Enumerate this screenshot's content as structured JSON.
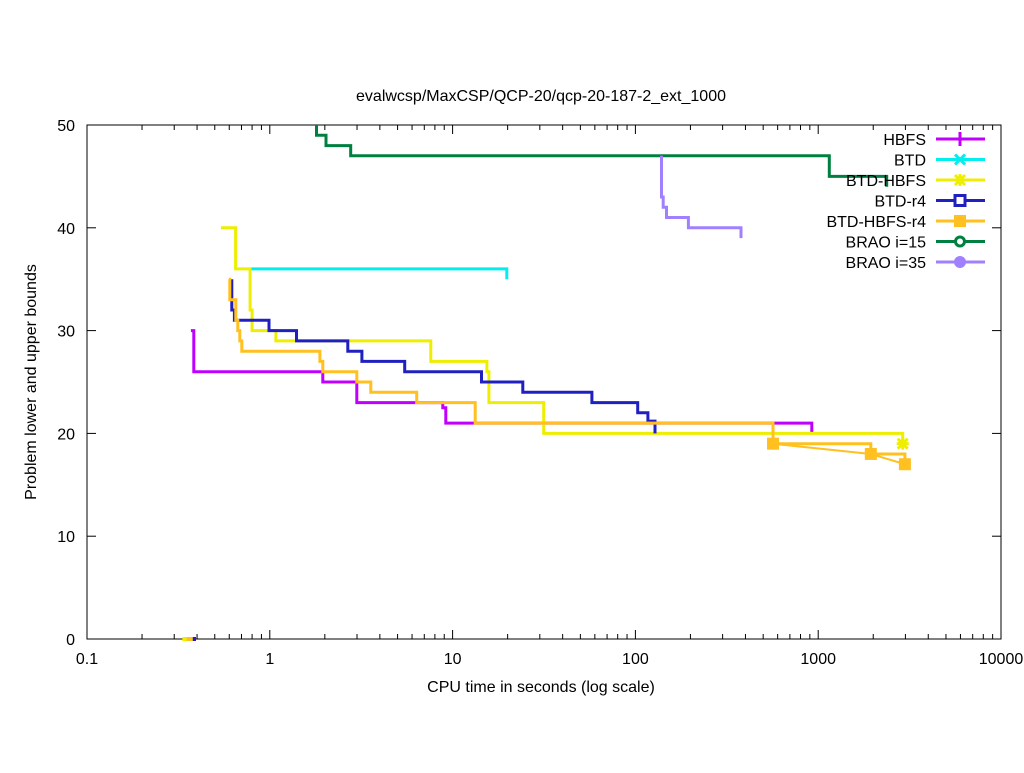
{
  "chart_data": {
    "type": "line",
    "title": "evalwcsp/MaxCSP/QCP-20/qcp-20-187-2_ext_1000",
    "xlabel": "CPU time in seconds (log scale)",
    "ylabel": "Problem lower and upper bounds",
    "xscale": "log",
    "xlim": [
      0.1,
      10000
    ],
    "ylim": [
      0,
      50
    ],
    "xticks": [
      0.1,
      1,
      10,
      100,
      1000,
      10000
    ],
    "xtick_labels": [
      "0.1",
      "1",
      "10",
      "100",
      "1000",
      "10000"
    ],
    "yticks": [
      0,
      10,
      20,
      30,
      40,
      50
    ],
    "ytick_labels": [
      "0",
      "10",
      "20",
      "30",
      "40",
      "50"
    ],
    "grid": false,
    "legend_position": "top-right",
    "series": [
      {
        "name": "HBFS",
        "color": "#c000ff",
        "marker": "plus",
        "points": [
          [
            0.37,
            30
          ],
          [
            0.384,
            30
          ],
          [
            0.384,
            26
          ],
          [
            1.95,
            26
          ],
          [
            1.95,
            25
          ],
          [
            2.99,
            25
          ],
          [
            2.99,
            23
          ],
          [
            8.84,
            23
          ],
          [
            8.84,
            22.5
          ],
          [
            9.18,
            22.5
          ],
          [
            9.18,
            21
          ],
          [
            571,
            21
          ],
          [
            922,
            21
          ],
          [
            922,
            20
          ]
        ],
        "zero_marks": []
      },
      {
        "name": "BTD",
        "color": "#00eeee",
        "marker": "cross",
        "points": [
          [
            0.78,
            36
          ],
          [
            19.8,
            36
          ],
          [
            19.8,
            35
          ]
        ],
        "zero_marks": [
          0.355
        ]
      },
      {
        "name": "BTD-HBFS",
        "color": "#eeee00",
        "marker": "star",
        "points": [
          [
            0.54,
            40
          ],
          [
            0.65,
            40
          ],
          [
            0.65,
            36
          ],
          [
            0.78,
            36
          ],
          [
            0.78,
            32
          ],
          [
            0.8,
            32
          ],
          [
            0.8,
            30
          ],
          [
            1.08,
            30
          ],
          [
            1.08,
            29
          ],
          [
            7.6,
            29
          ],
          [
            7.6,
            27
          ],
          [
            15.4,
            27
          ],
          [
            15.4,
            26
          ],
          [
            15.8,
            26
          ],
          [
            15.8,
            23
          ],
          [
            31.5,
            23
          ],
          [
            31.5,
            20
          ],
          [
            2900,
            20
          ],
          [
            2900,
            19
          ]
        ],
        "end_marker": [
          2900,
          19
        ],
        "zero_marks": [
          0.345
        ]
      },
      {
        "name": "BTD-r4",
        "color": "#2020c0",
        "marker": "box",
        "points": [
          [
            0.62,
            35
          ],
          [
            0.62,
            32
          ],
          [
            0.64,
            32
          ],
          [
            0.64,
            31
          ],
          [
            0.99,
            31
          ],
          [
            0.99,
            30
          ],
          [
            1.4,
            30
          ],
          [
            1.4,
            29
          ],
          [
            2.67,
            29
          ],
          [
            2.67,
            28
          ],
          [
            3.19,
            28
          ],
          [
            3.19,
            27
          ],
          [
            5.47,
            27
          ],
          [
            5.47,
            26
          ],
          [
            14.4,
            26
          ],
          [
            14.4,
            25
          ],
          [
            24.2,
            25
          ],
          [
            24.2,
            24
          ],
          [
            57.8,
            24
          ],
          [
            57.8,
            23
          ],
          [
            103,
            23
          ],
          [
            103,
            22
          ],
          [
            117,
            22
          ],
          [
            117,
            21.2
          ],
          [
            128,
            21.2
          ],
          [
            128,
            20
          ]
        ],
        "zero_marks": [
          0.38
        ]
      },
      {
        "name": "BTD-HBFS-r4",
        "color": "#ffc020",
        "marker": "filled-box",
        "points": [
          [
            0.597,
            35
          ],
          [
            0.604,
            35
          ],
          [
            0.604,
            33
          ],
          [
            0.652,
            33
          ],
          [
            0.652,
            31
          ],
          [
            0.668,
            31
          ],
          [
            0.668,
            30
          ],
          [
            0.685,
            30
          ],
          [
            0.685,
            29
          ],
          [
            0.703,
            29
          ],
          [
            0.703,
            28
          ],
          [
            1.88,
            28
          ],
          [
            1.88,
            27
          ],
          [
            1.95,
            27
          ],
          [
            1.95,
            26
          ],
          [
            2.99,
            26
          ],
          [
            2.99,
            25
          ],
          [
            3.57,
            25
          ],
          [
            3.57,
            24
          ],
          [
            6.36,
            24
          ],
          [
            6.36,
            23
          ],
          [
            13.3,
            23
          ],
          [
            13.3,
            21
          ],
          [
            566,
            21
          ],
          [
            566,
            19
          ],
          [
            1940,
            19
          ],
          [
            1940,
            18
          ],
          [
            2980,
            18
          ],
          [
            2980,
            17
          ]
        ],
        "marker_points": [
          [
            566,
            19
          ],
          [
            1940,
            18
          ],
          [
            2980,
            17
          ]
        ],
        "zero_marks": [
          0.365
        ]
      },
      {
        "name": "BRAO i=15",
        "color": "#008040",
        "marker": "circle",
        "points": [
          [
            1.8,
            50
          ],
          [
            1.8,
            49
          ],
          [
            2.03,
            49
          ],
          [
            2.03,
            48
          ],
          [
            2.77,
            48
          ],
          [
            2.77,
            47
          ],
          [
            1150,
            47
          ],
          [
            1150,
            45
          ],
          [
            2370,
            45
          ],
          [
            2370,
            44
          ]
        ],
        "zero_marks": []
      },
      {
        "name": "BRAO i=35",
        "color": "#a080ff",
        "marker": "filled-circle",
        "points": [
          [
            139,
            47
          ],
          [
            139,
            43
          ],
          [
            142,
            43
          ],
          [
            142,
            42
          ],
          [
            148,
            42
          ],
          [
            148,
            41
          ],
          [
            195,
            41
          ],
          [
            195,
            40
          ],
          [
            378,
            40
          ],
          [
            378,
            39
          ]
        ],
        "zero_marks": []
      }
    ]
  }
}
